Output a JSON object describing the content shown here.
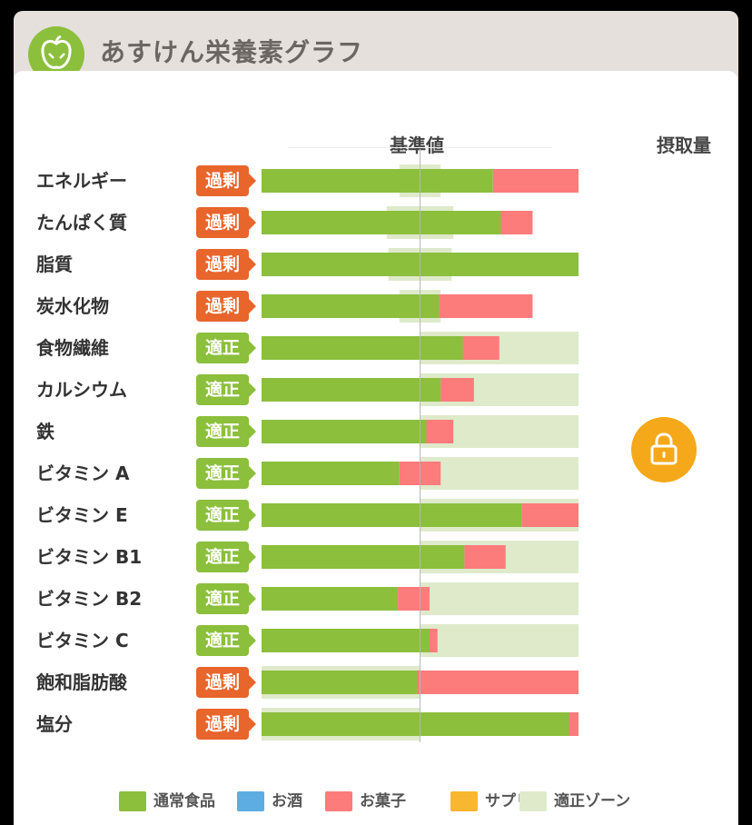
{
  "app": {
    "title": "あすけん栄養素グラフ"
  },
  "header": {
    "baseline_label": "基準値",
    "intake_label": "摂取量"
  },
  "colors": {
    "normal_food": "#8bbf3c",
    "alcohol": "#5dade2",
    "snacks": "#fc7b7b",
    "supplement": "#f7b731",
    "proper_zone": "#dfeacb",
    "badge_over": "#e8652c",
    "badge_ok": "#8bbf3c",
    "lock_button": "#f5a81a"
  },
  "lock_icon": "lock-icon",
  "legend": [
    {
      "label": "通常食品",
      "color": "#8bbf3c"
    },
    {
      "label": "お酒",
      "color": "#5dade2"
    },
    {
      "label": "お菓子",
      "color": "#fc7b7b"
    },
    {
      "label": "サプリ",
      "color": "#f7b731"
    },
    {
      "label": "適正ゾーン",
      "color": "#dfeacb"
    }
  ],
  "chart_data": {
    "type": "bar",
    "orientation": "horizontal",
    "stacked": true,
    "title": "あすけん栄養素グラフ",
    "xlabel": "基準値",
    "note": "x values expressed as percent of 基準値 (baseline = 100)",
    "xlim": [
      0,
      200
    ],
    "categories": [
      "エネルギー",
      "たんぱく質",
      "脂質",
      "炭水化物",
      "食物繊維",
      "カルシウム",
      "鉄",
      "ビタミン A",
      "ビタミン E",
      "ビタミン B1",
      "ビタミン B2",
      "ビタミン C",
      "飽和脂肪酸",
      "塩分"
    ],
    "status": [
      "過剰",
      "過剰",
      "過剰",
      "過剰",
      "適正",
      "適正",
      "適正",
      "適正",
      "適正",
      "適正",
      "適正",
      "適正",
      "過剰",
      "過剰"
    ],
    "series": [
      {
        "name": "通常食品",
        "values": [
          146,
          151,
          200,
          112,
          127,
          113,
          104,
          87,
          164,
          128,
          86,
          106,
          98,
          194
        ]
      },
      {
        "name": "お菓子",
        "values": [
          54,
          20,
          0,
          59,
          23,
          21,
          17,
          26,
          36,
          26,
          20,
          5,
          102,
          6
        ]
      }
    ],
    "proper_zone": [
      [
        87,
        113
      ],
      [
        79,
        121
      ],
      [
        80,
        120
      ],
      [
        87,
        113
      ],
      [
        100,
        200
      ],
      [
        100,
        200
      ],
      [
        100,
        200
      ],
      [
        100,
        200
      ],
      [
        100,
        200
      ],
      [
        100,
        200
      ],
      [
        100,
        200
      ],
      [
        100,
        200
      ],
      [
        0,
        100
      ],
      [
        0,
        100
      ]
    ],
    "legend": [
      "通常食品",
      "お酒",
      "お菓子",
      "サプリ",
      "適正ゾーン"
    ]
  }
}
